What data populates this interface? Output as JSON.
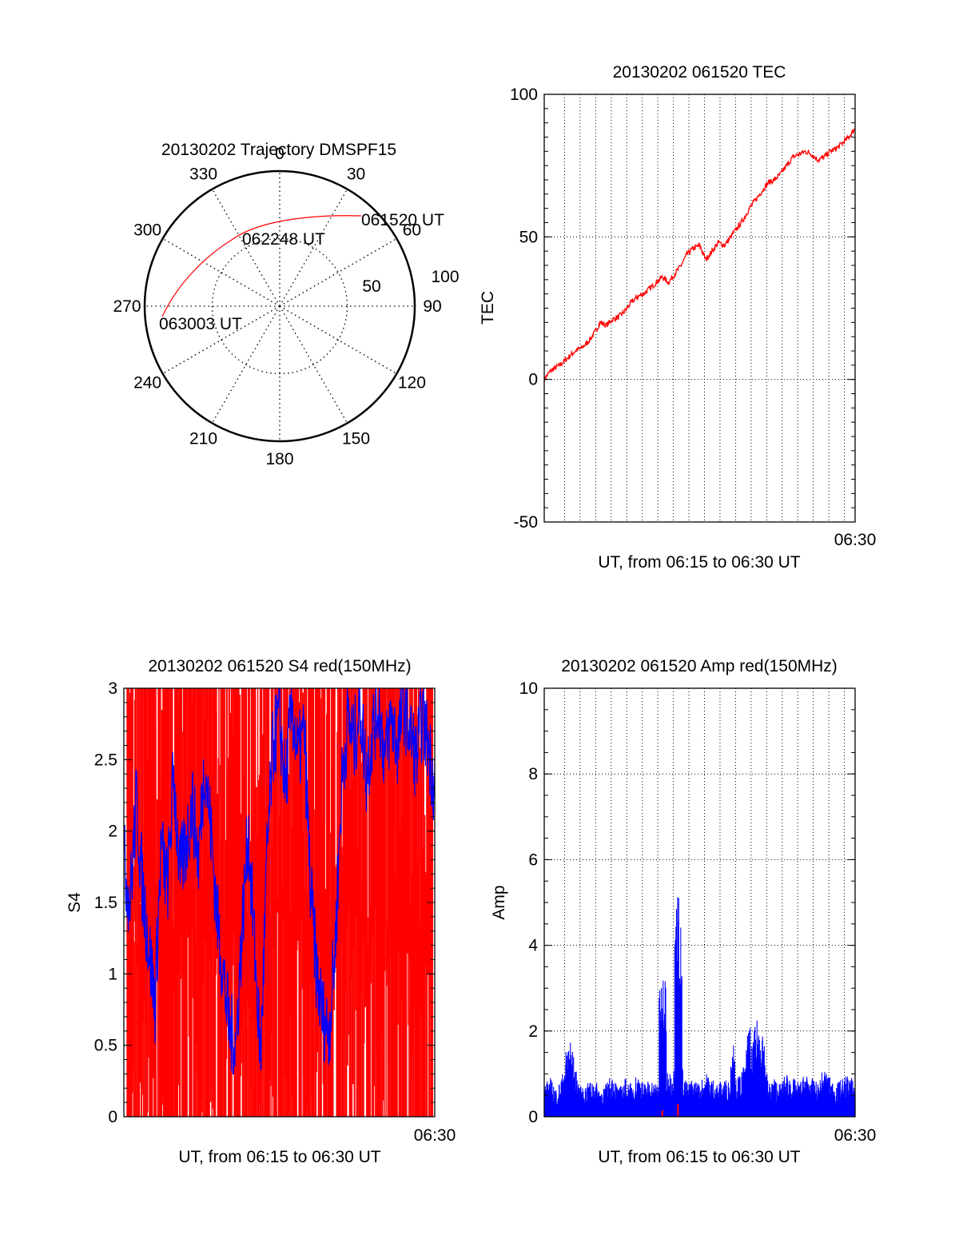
{
  "colors": {
    "red": "#ff0000",
    "blue": "#0000ff",
    "axis": "#000000",
    "grid": "#000000"
  },
  "chart_data": [
    {
      "type": "polar",
      "title": "20130202 Trajectory DMSPF15",
      "angle_labels": [
        "0",
        "30",
        "60",
        "90",
        "120",
        "150",
        "180",
        "210",
        "240",
        "270",
        "300",
        "330"
      ],
      "radial_labels": [
        "50",
        "100"
      ],
      "time_labels": [
        "061520 UT",
        "062248 UT",
        "063003 UT"
      ],
      "series": [
        {
          "color": "red",
          "points": [
            [
              90,
              70
            ],
            [
              80,
              71
            ],
            [
              70,
              73
            ],
            [
              60,
              76
            ],
            [
              50,
              80
            ],
            [
              40,
              84
            ],
            [
              33,
              87
            ],
            [
              20,
              89
            ],
            [
              5,
              91
            ],
            [
              -10,
              93
            ],
            [
              -25,
              95
            ],
            [
              -40,
              97
            ],
            [
              -55,
              98
            ],
            [
              -68,
              98
            ]
          ]
        }
      ]
    },
    {
      "type": "line",
      "title": "20130202 061520 TEC",
      "ylabel": "TEC",
      "xlabel": "UT, from 06:15 to 06:30 UT",
      "x_tick_label": "06:30",
      "ylim": [
        -50,
        100
      ],
      "y_ticks": [
        "100",
        "50",
        "0",
        "-50"
      ],
      "grid": true,
      "series": [
        {
          "color": "red",
          "x": [
            0,
            0.02,
            0.05,
            0.08,
            0.1,
            0.12,
            0.14,
            0.16,
            0.18,
            0.2,
            0.22,
            0.24,
            0.26,
            0.28,
            0.3,
            0.32,
            0.34,
            0.36,
            0.38,
            0.4,
            0.42,
            0.44,
            0.46,
            0.48,
            0.5,
            0.52,
            0.54,
            0.56,
            0.58,
            0.6,
            0.62,
            0.64,
            0.66,
            0.68,
            0.7,
            0.72,
            0.74,
            0.76,
            0.78,
            0.8,
            0.82,
            0.84,
            0.86,
            0.88,
            0.9,
            0.92,
            0.94,
            0.96,
            0.98,
            1.0
          ],
          "values": [
            0,
            3,
            5,
            8,
            10,
            11,
            13,
            16,
            20,
            19,
            21,
            22,
            24,
            27,
            29,
            30,
            32,
            34,
            36,
            34,
            37,
            40,
            44,
            46,
            47,
            42,
            45,
            48,
            47,
            50,
            53,
            56,
            60,
            63,
            66,
            69,
            70,
            72,
            75,
            78,
            79,
            80,
            79,
            77,
            78,
            80,
            81,
            83,
            85,
            88
          ]
        }
      ]
    },
    {
      "type": "line",
      "title": "20130202 061520 S4 red(150MHz)",
      "ylabel": "S4",
      "xlabel": "UT, from 06:15 to 06:30 UT",
      "x_tick_label": "06:30",
      "ylim": [
        0,
        3
      ],
      "y_ticks": [
        "3",
        "2.5",
        "2",
        "1.5",
        "1",
        "0.5",
        "0"
      ],
      "series": [
        {
          "color": "red",
          "style": "dense-spikes"
        },
        {
          "color": "blue",
          "x": [
            0,
            0.02,
            0.04,
            0.06,
            0.08,
            0.1,
            0.12,
            0.14,
            0.16,
            0.18,
            0.2,
            0.22,
            0.24,
            0.26,
            0.28,
            0.3,
            0.32,
            0.34,
            0.36,
            0.38,
            0.4,
            0.42,
            0.44,
            0.46,
            0.48,
            0.5,
            0.52,
            0.54,
            0.56,
            0.58,
            0.6,
            0.62,
            0.64,
            0.66,
            0.68,
            0.7,
            0.72,
            0.74,
            0.76,
            0.78,
            0.8,
            0.82,
            0.84,
            0.86,
            0.88,
            0.9,
            0.92,
            0.94,
            0.96,
            0.98,
            1.0
          ],
          "values": [
            1.8,
            1.5,
            2.2,
            1.6,
            1.2,
            0.8,
            1.9,
            1.6,
            2.4,
            1.7,
            1.9,
            2.2,
            1.8,
            2.5,
            2.0,
            1.4,
            1.0,
            0.6,
            0.5,
            1.3,
            2.0,
            1.2,
            0.4,
            1.8,
            2.6,
            2.8,
            2.3,
            2.9,
            2.5,
            2.7,
            1.6,
            1.0,
            0.7,
            0.6,
            1.2,
            2.3,
            2.8,
            2.6,
            2.9,
            2.4,
            2.7,
            2.9,
            2.5,
            2.8,
            2.6,
            2.9,
            2.7,
            2.5,
            2.8,
            2.6,
            2.3
          ]
        }
      ]
    },
    {
      "type": "line",
      "title": "20130202 061520 Amp red(150MHz)",
      "ylabel": "Amp",
      "xlabel": "UT, from 06:15 to 06:30 UT",
      "x_tick_label": "06:30",
      "ylim": [
        0,
        10
      ],
      "y_ticks": [
        "10",
        "8",
        "6",
        "4",
        "2",
        "0"
      ],
      "grid": true,
      "series": [
        {
          "color": "blue",
          "x": [
            0,
            0.02,
            0.04,
            0.06,
            0.08,
            0.1,
            0.12,
            0.14,
            0.16,
            0.18,
            0.2,
            0.22,
            0.24,
            0.26,
            0.28,
            0.3,
            0.32,
            0.34,
            0.36,
            0.38,
            0.4,
            0.42,
            0.44,
            0.46,
            0.48,
            0.5,
            0.52,
            0.54,
            0.56,
            0.58,
            0.6,
            0.62,
            0.64,
            0.66,
            0.68,
            0.7,
            0.72,
            0.74,
            0.76,
            0.78,
            0.8,
            0.82,
            0.84,
            0.86,
            0.88,
            0.9,
            0.92,
            0.94,
            0.96,
            0.98,
            1.0
          ],
          "values": [
            0.6,
            0.7,
            0.5,
            0.8,
            1.6,
            0.9,
            0.5,
            0.6,
            0.7,
            0.5,
            0.6,
            0.8,
            0.5,
            0.7,
            0.6,
            0.8,
            0.6,
            0.7,
            0.6,
            0.7,
            0.8,
            0.9,
            1.0,
            0.6,
            0.7,
            0.6,
            0.8,
            0.7,
            0.6,
            0.7,
            0.6,
            0.7,
            0.9,
            1.0,
            1.7,
            1.9,
            0.6,
            0.7,
            0.6,
            0.8,
            0.7,
            0.6,
            0.8,
            0.7,
            0.6,
            0.9,
            0.7,
            0.6,
            0.7,
            0.8,
            0.6
          ]
        },
        {
          "color": "blue",
          "style": "bursts",
          "bursts": [
            [
              0.37,
              3.3
            ],
            [
              0.38,
              3.2
            ],
            [
              0.42,
              5.4
            ],
            [
              0.43,
              4.8
            ],
            [
              0.6,
              1.7
            ],
            [
              0.65,
              2.1
            ]
          ]
        },
        {
          "color": "red",
          "style": "bursts",
          "bursts": [
            [
              0.38,
              0.15
            ],
            [
              0.43,
              0.3
            ]
          ]
        }
      ]
    }
  ]
}
